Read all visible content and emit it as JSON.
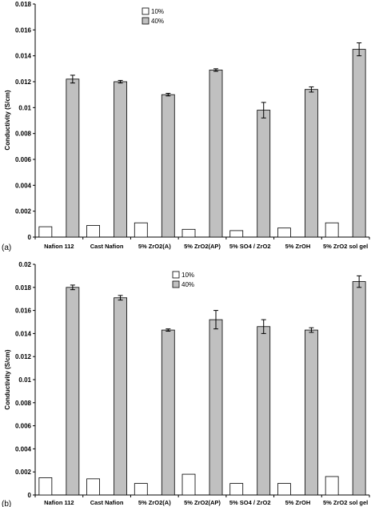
{
  "chart_data": [
    {
      "type": "bar",
      "panel_label": "(a)",
      "ylabel": "Conductivity (S/cm)",
      "xlabel": "",
      "ylim": [
        0,
        0.018
      ],
      "yticks": [
        "0",
        "0.002",
        "0.004",
        "0.006",
        "0.008",
        "0.01",
        "0.012",
        "0.014",
        "0.016",
        "0.018"
      ],
      "categories": [
        "Nafion 112",
        "Cast Nafion",
        "5% ZrO2(A)",
        "5% ZrO2(AP)",
        "5% SO4 / ZrO2",
        "5% ZrOH",
        "5% ZrO2 sol gel"
      ],
      "series": [
        {
          "name": "10%",
          "values": [
            0.0008,
            0.0009,
            0.0011,
            0.0006,
            0.0005,
            0.0007,
            0.0011
          ],
          "errors": [
            0,
            0,
            0,
            0,
            0,
            0,
            0
          ],
          "color": "#ffffff"
        },
        {
          "name": "40%",
          "values": [
            0.0122,
            0.012,
            0.011,
            0.0129,
            0.0098,
            0.0114,
            0.0145
          ],
          "errors": [
            0.0003,
            0.0001,
            0.0001,
            0.0001,
            0.0006,
            0.0002,
            0.0005
          ],
          "color": "#c0c0c0"
        }
      ],
      "grid": false,
      "legend": "top-left"
    },
    {
      "type": "bar",
      "panel_label": "(b)",
      "ylabel": "Conductivity (S/cm)",
      "xlabel": "",
      "ylim": [
        0,
        0.02
      ],
      "yticks": [
        "0",
        "0.002",
        "0.004",
        "0.006",
        "0.008",
        "0.01",
        "0.012",
        "0.014",
        "0.016",
        "0.018",
        "0.02"
      ],
      "categories": [
        "Nafion 112",
        "Cast Nafion",
        "5% ZrO2(A)",
        "5% ZrO2(AP)",
        "5% SO4 / ZrO2",
        "5% ZrOH",
        "5% ZrO2 sol gel"
      ],
      "series": [
        {
          "name": "10%",
          "values": [
            0.0015,
            0.0014,
            0.001,
            0.0018,
            0.001,
            0.001,
            0.0016
          ],
          "errors": [
            0,
            0,
            0,
            0,
            0,
            0,
            0
          ],
          "color": "#ffffff"
        },
        {
          "name": "40%",
          "values": [
            0.018,
            0.0171,
            0.0143,
            0.0152,
            0.0146,
            0.0143,
            0.0185
          ],
          "errors": [
            0.0002,
            0.0002,
            0.0001,
            0.0008,
            0.0006,
            0.0002,
            0.0005
          ],
          "color": "#c0c0c0"
        }
      ],
      "grid": false,
      "legend": "top-left"
    }
  ]
}
